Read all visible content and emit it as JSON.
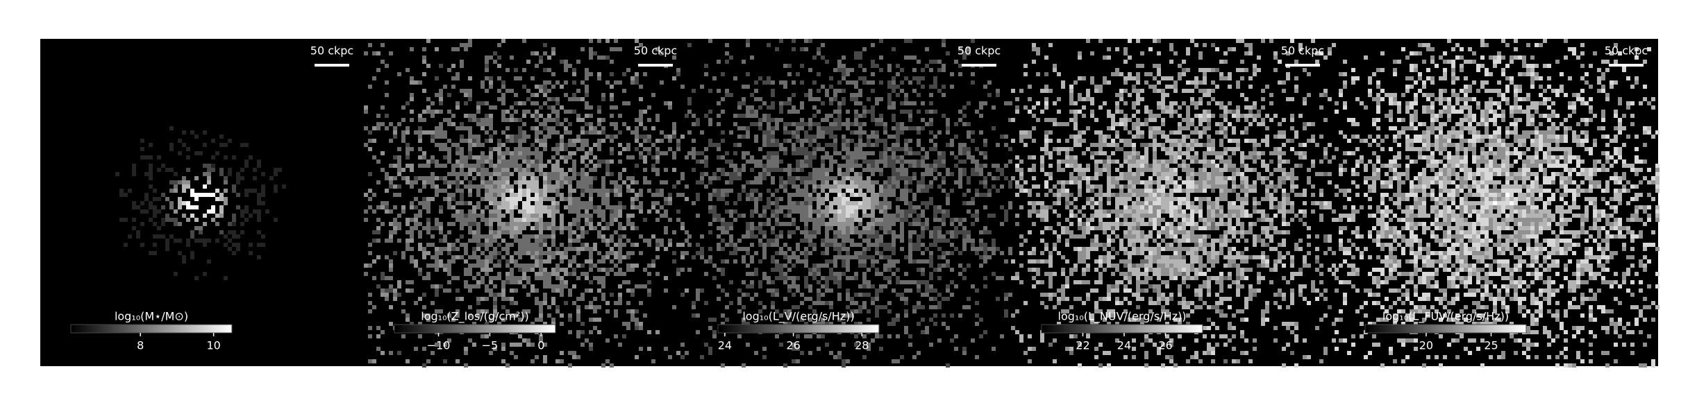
{
  "panels": [
    {
      "scale_bar_label": "50 ckpc",
      "colorbar": {
        "label": "log₁₀(M⋆/M⊙)",
        "clim": [
          6.1,
          10.5
        ],
        "ticks": [
          8,
          10
        ]
      }
    },
    {
      "scale_bar_label": "50 ckpc",
      "colorbar": {
        "label": "log₁₀(Z_los/(g/cm²))",
        "clim": [
          -14.3,
          1.4
        ],
        "ticks": [
          {
            "value": -10,
            "label": "−10"
          },
          {
            "value": -5,
            "label": "−5"
          },
          0
        ]
      }
    },
    {
      "scale_bar_label": "50 ckpc",
      "colorbar": {
        "label": "log₁₀(L_V/(erg/s/Hz))",
        "clim": [
          23.8,
          28.5
        ],
        "ticks": [
          24,
          26,
          28
        ]
      }
    },
    {
      "scale_bar_label": "50 ckpc",
      "colorbar": {
        "label": "log₁₀(L_NUV/(erg/s/Hz))",
        "clim": [
          20,
          27.8
        ],
        "ticks": [
          22,
          24,
          26
        ]
      }
    },
    {
      "scale_bar_label": "50 ckpc",
      "colorbar": {
        "label": "log₁₀(L_FUV/(erg/s/Hz))",
        "clim": [
          15.3,
          27.7
        ],
        "ticks": [
          20,
          25
        ]
      }
    }
  ]
}
